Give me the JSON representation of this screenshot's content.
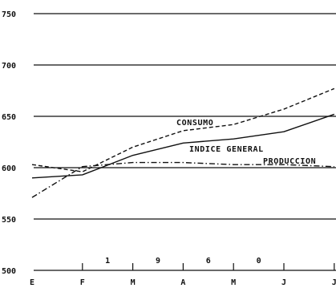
{
  "chart_data": {
    "type": "line",
    "title": "",
    "xlabel": "",
    "ylabel": "",
    "categories": [
      "E",
      "F",
      "M",
      "A",
      "M",
      "J",
      "J"
    ],
    "year_digits": [
      "1",
      "9",
      "6",
      "0"
    ],
    "y_ticks": [
      500,
      550,
      600,
      650,
      700,
      750
    ],
    "ylim": [
      500,
      750
    ],
    "grid": true,
    "series": [
      {
        "name": "CONSUMO",
        "style": "dashed",
        "values": [
          603,
          596,
          620,
          636,
          642,
          657,
          677
        ]
      },
      {
        "name": "INDICE GENERAL",
        "style": "solid",
        "values": [
          590,
          593,
          612,
          624,
          628,
          635,
          652
        ]
      },
      {
        "name": "PRODUCCION",
        "style": "dash-dot",
        "values": [
          571,
          601,
          605,
          605,
          603,
          603,
          601
        ]
      }
    ],
    "colors": {
      "ink": "#111111",
      "background": "#ffffff"
    }
  }
}
